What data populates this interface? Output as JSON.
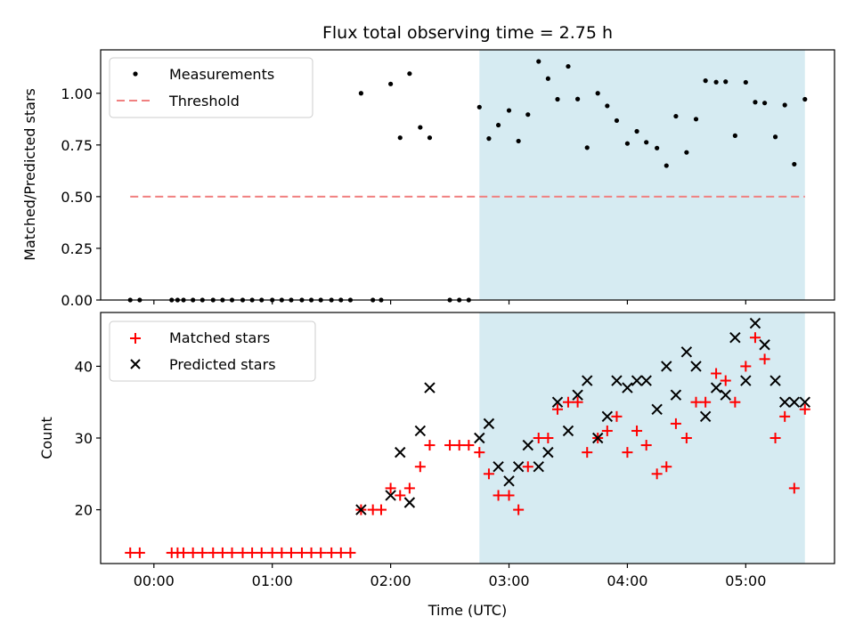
{
  "chart_data": [
    {
      "type": "scatter",
      "title": "Flux total observing time = 2.75 h",
      "ylabel": "Matched/Predicted stars",
      "xlabel": "",
      "x_unit": "hours since 00:00 UTC",
      "xlim": [
        -0.45,
        5.75
      ],
      "ylim": [
        0,
        1.21
      ],
      "yticks": [
        0,
        0.25,
        0.5,
        0.75,
        1.0
      ],
      "ytick_labels": [
        "0.00",
        "0.25",
        "0.50",
        "0.75",
        "1.00"
      ],
      "shaded_region": {
        "x": [
          2.75,
          5.5
        ],
        "color": "#add8e6"
      },
      "legend": {
        "placement": "upper-left",
        "entries": [
          "Measurements",
          "Threshold"
        ]
      },
      "series": [
        {
          "name": "Measurements",
          "color": "#000000",
          "marker": "dot",
          "points": [
            [
              -0.2,
              0
            ],
            [
              -0.12,
              0
            ],
            [
              0.15,
              0
            ],
            [
              0.2,
              0
            ],
            [
              0.25,
              0
            ],
            [
              0.33,
              0
            ],
            [
              0.41,
              0
            ],
            [
              0.5,
              0
            ],
            [
              0.58,
              0
            ],
            [
              0.66,
              0
            ],
            [
              0.75,
              0
            ],
            [
              0.83,
              0
            ],
            [
              0.91,
              0
            ],
            [
              1.0,
              0
            ],
            [
              1.08,
              0
            ],
            [
              1.16,
              0
            ],
            [
              1.25,
              0
            ],
            [
              1.33,
              0
            ],
            [
              1.41,
              0
            ],
            [
              1.5,
              0
            ],
            [
              1.58,
              0
            ],
            [
              1.66,
              0
            ],
            [
              1.75,
              1.0
            ],
            [
              1.85,
              0
            ],
            [
              1.92,
              0
            ],
            [
              2.0,
              1.045
            ],
            [
              2.08,
              0.785
            ],
            [
              2.16,
              1.095
            ],
            [
              2.25,
              0.835
            ],
            [
              2.33,
              0.785
            ],
            [
              2.5,
              0
            ],
            [
              2.58,
              0
            ],
            [
              2.66,
              0
            ],
            [
              2.75,
              0.933
            ],
            [
              2.83,
              0.781
            ],
            [
              2.91,
              0.846
            ],
            [
              3.0,
              0.917
            ],
            [
              3.08,
              0.769
            ],
            [
              3.16,
              0.897
            ],
            [
              3.25,
              1.154
            ],
            [
              3.33,
              1.071
            ],
            [
              3.41,
              0.971
            ],
            [
              3.5,
              1.13
            ],
            [
              3.58,
              0.972
            ],
            [
              3.66,
              0.737
            ],
            [
              3.75,
              1.0
            ],
            [
              3.83,
              0.939
            ],
            [
              3.91,
              0.868
            ],
            [
              4.0,
              0.757
            ],
            [
              4.08,
              0.816
            ],
            [
              4.16,
              0.763
            ],
            [
              4.25,
              0.735
            ],
            [
              4.33,
              0.65
            ],
            [
              4.41,
              0.889
            ],
            [
              4.5,
              0.714
            ],
            [
              4.58,
              0.875
            ],
            [
              4.66,
              1.061
            ],
            [
              4.75,
              1.054
            ],
            [
              4.83,
              1.056
            ],
            [
              4.91,
              0.795
            ],
            [
              5.0,
              1.053
            ],
            [
              5.08,
              0.957
            ],
            [
              5.16,
              0.953
            ],
            [
              5.25,
              0.789
            ],
            [
              5.33,
              0.943
            ],
            [
              5.41,
              0.657
            ],
            [
              5.5,
              0.971
            ]
          ]
        },
        {
          "name": "Threshold",
          "color": "#f08080",
          "style": "dashed",
          "x": [
            -0.2,
            5.5
          ],
          "y": [
            0.5,
            0.5
          ]
        }
      ]
    },
    {
      "type": "scatter",
      "title": "",
      "ylabel": "Count",
      "xlabel": "Time (UTC)",
      "x_unit": "hours since 00:00 UTC",
      "xlim": [
        -0.45,
        5.75
      ],
      "ylim": [
        12.5,
        47.5
      ],
      "yticks": [
        20,
        30,
        40
      ],
      "ytick_labels": [
        "20",
        "30",
        "40"
      ],
      "xticks": [
        0,
        1,
        2,
        3,
        4,
        5
      ],
      "xtick_labels": [
        "00:00",
        "01:00",
        "02:00",
        "03:00",
        "04:00",
        "05:00"
      ],
      "shaded_region": {
        "x": [
          2.75,
          5.5
        ],
        "color": "#add8e6"
      },
      "legend": {
        "placement": "upper-left",
        "entries": [
          "Matched stars",
          "Predicted stars"
        ]
      },
      "series": [
        {
          "name": "Matched stars",
          "color": "#ff0000",
          "marker": "plus",
          "points": [
            [
              -0.2,
              14
            ],
            [
              -0.12,
              14
            ],
            [
              0.15,
              14
            ],
            [
              0.2,
              14
            ],
            [
              0.25,
              14
            ],
            [
              0.33,
              14
            ],
            [
              0.41,
              14
            ],
            [
              0.5,
              14
            ],
            [
              0.58,
              14
            ],
            [
              0.66,
              14
            ],
            [
              0.75,
              14
            ],
            [
              0.83,
              14
            ],
            [
              0.91,
              14
            ],
            [
              1.0,
              14
            ],
            [
              1.08,
              14
            ],
            [
              1.16,
              14
            ],
            [
              1.25,
              14
            ],
            [
              1.33,
              14
            ],
            [
              1.41,
              14
            ],
            [
              1.5,
              14
            ],
            [
              1.58,
              14
            ],
            [
              1.66,
              14
            ],
            [
              1.75,
              20
            ],
            [
              1.85,
              20
            ],
            [
              1.92,
              20
            ],
            [
              2.0,
              23
            ],
            [
              2.08,
              22
            ],
            [
              2.16,
              23
            ],
            [
              2.25,
              26
            ],
            [
              2.33,
              29
            ],
            [
              2.5,
              29
            ],
            [
              2.58,
              29
            ],
            [
              2.66,
              29
            ],
            [
              2.75,
              28
            ],
            [
              2.83,
              25
            ],
            [
              2.91,
              22
            ],
            [
              3.0,
              22
            ],
            [
              3.08,
              20
            ],
            [
              3.16,
              26
            ],
            [
              3.25,
              30
            ],
            [
              3.33,
              30
            ],
            [
              3.41,
              34
            ],
            [
              3.5,
              35
            ],
            [
              3.58,
              35
            ],
            [
              3.66,
              28
            ],
            [
              3.75,
              30
            ],
            [
              3.83,
              31
            ],
            [
              3.91,
              33
            ],
            [
              4.0,
              28
            ],
            [
              4.08,
              31
            ],
            [
              4.16,
              29
            ],
            [
              4.25,
              25
            ],
            [
              4.33,
              26
            ],
            [
              4.41,
              32
            ],
            [
              4.5,
              30
            ],
            [
              4.58,
              35
            ],
            [
              4.66,
              35
            ],
            [
              4.75,
              39
            ],
            [
              4.83,
              38
            ],
            [
              4.91,
              35
            ],
            [
              5.0,
              40
            ],
            [
              5.08,
              44
            ],
            [
              5.16,
              41
            ],
            [
              5.25,
              30
            ],
            [
              5.33,
              33
            ],
            [
              5.41,
              23
            ],
            [
              5.5,
              34
            ]
          ]
        },
        {
          "name": "Predicted stars",
          "color": "#000000",
          "marker": "x",
          "points": [
            [
              1.75,
              20
            ],
            [
              2.0,
              22
            ],
            [
              2.08,
              28
            ],
            [
              2.16,
              21
            ],
            [
              2.25,
              31
            ],
            [
              2.33,
              37
            ],
            [
              2.75,
              30
            ],
            [
              2.83,
              32
            ],
            [
              2.91,
              26
            ],
            [
              3.0,
              24
            ],
            [
              3.08,
              26
            ],
            [
              3.16,
              29
            ],
            [
              3.25,
              26
            ],
            [
              3.33,
              28
            ],
            [
              3.41,
              35
            ],
            [
              3.5,
              31
            ],
            [
              3.58,
              36
            ],
            [
              3.66,
              38
            ],
            [
              3.75,
              30
            ],
            [
              3.83,
              33
            ],
            [
              3.91,
              38
            ],
            [
              4.0,
              37
            ],
            [
              4.08,
              38
            ],
            [
              4.16,
              38
            ],
            [
              4.25,
              34
            ],
            [
              4.33,
              40
            ],
            [
              4.41,
              36
            ],
            [
              4.5,
              42
            ],
            [
              4.58,
              40
            ],
            [
              4.66,
              33
            ],
            [
              4.75,
              37
            ],
            [
              4.83,
              36
            ],
            [
              4.91,
              44
            ],
            [
              5.0,
              38
            ],
            [
              5.08,
              46
            ],
            [
              5.16,
              43
            ],
            [
              5.25,
              38
            ],
            [
              5.33,
              35
            ],
            [
              5.41,
              35
            ],
            [
              5.5,
              35
            ]
          ]
        }
      ]
    }
  ]
}
